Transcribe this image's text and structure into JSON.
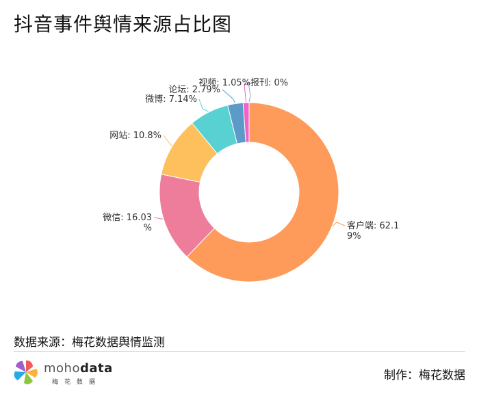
{
  "title": "抖音事件舆情来源占比图",
  "footer": {
    "source": "数据来源：梅花数据舆情监测",
    "maker": "制作：梅花数据",
    "logo_mo": "moho",
    "logo_data": "data",
    "logo_sub": "梅花数据"
  },
  "chart_data": {
    "type": "donut",
    "title": "抖音事件舆情来源占比图",
    "slices": [
      {
        "name": "客户端",
        "value": 62.19,
        "label_lines": [
          "客户端: 62.1",
          "9%"
        ],
        "color": "#fe9a5a"
      },
      {
        "name": "微信",
        "value": 16.03,
        "label_lines": [
          "微信: 16.03",
          "%"
        ],
        "color": "#ee7d9c"
      },
      {
        "name": "网站",
        "value": 10.8,
        "label_lines": [
          "网站: 10.8%"
        ],
        "color": "#fec05c"
      },
      {
        "name": "微博",
        "value": 7.14,
        "label_lines": [
          "微博: 7.14%"
        ],
        "color": "#58d1d3"
      },
      {
        "name": "论坛",
        "value": 2.79,
        "label_lines": [
          "论坛: 2.79%"
        ],
        "color": "#5b9ac9"
      },
      {
        "name": "视频",
        "value": 1.05,
        "label_lines": [
          "视频: 1.05%"
        ],
        "color": "#f262c7"
      },
      {
        "name": "报刊",
        "value": 0,
        "label_lines": [
          "报刊: 0%"
        ],
        "color": "#9aa6b8"
      }
    ]
  }
}
